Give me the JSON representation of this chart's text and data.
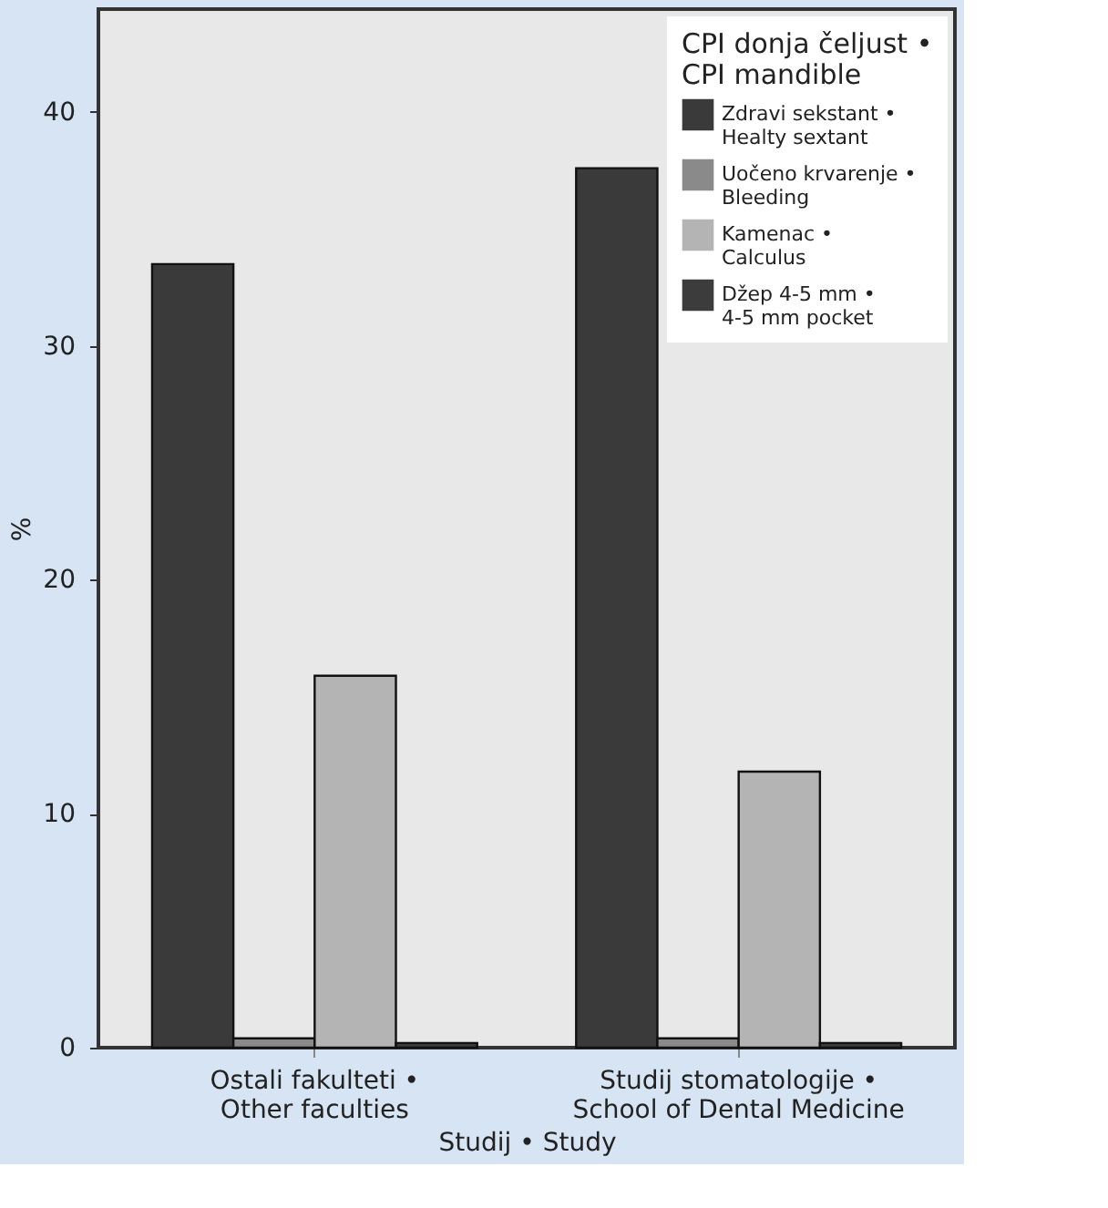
{
  "chart_data": {
    "type": "bar",
    "xlabel": "Studij • Study",
    "ylabel": "%",
    "legend_title": "CPI donja čeljust • CPI mandible",
    "categories": [
      "Ostali fakulteti • Other faculties",
      "Studij stomatologije • School of Dental Medicine"
    ],
    "series": [
      {
        "name": "Zdravi sekstant • Healty sextant",
        "color": "#3a3a3a",
        "values": [
          33.5,
          37.6
        ]
      },
      {
        "name": "Uočeno krvarenje • Bleeding",
        "color": "#8a8a8a",
        "values": [
          0.4,
          0.4
        ]
      },
      {
        "name": "Kamenac • Calculus",
        "color": "#b4b4b4",
        "values": [
          15.9,
          11.8
        ]
      },
      {
        "name": "Džep 4-5 mm • 4-5 mm pocket",
        "color": "#3c3c3c",
        "values": [
          0.2,
          0.2
        ]
      }
    ],
    "ylim": [
      0,
      44.4
    ],
    "yticks": [
      0,
      10,
      20,
      30,
      40
    ],
    "grid": false,
    "legend": "top right"
  }
}
